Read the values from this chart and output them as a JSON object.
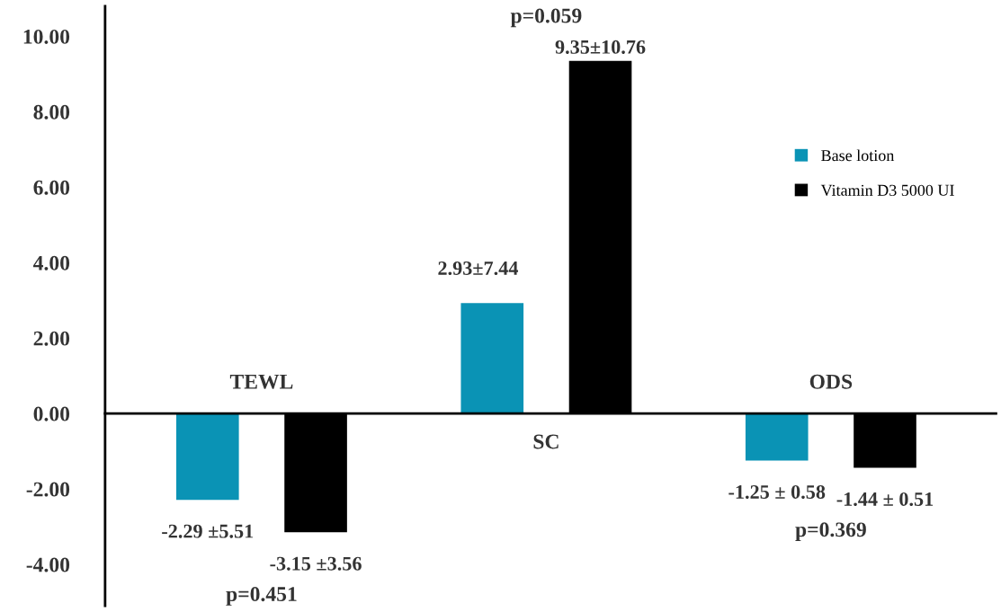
{
  "chart_data": {
    "type": "bar",
    "categories": [
      "TEWL",
      "SC",
      "ODS"
    ],
    "series": [
      {
        "name": "Base lotion",
        "color": "#0a93b5",
        "values": [
          -2.29,
          2.93,
          -1.25
        ],
        "value_labels": [
          "-2.29 ±5.51",
          "2.93±7.44",
          "-1.25 ± 0.58"
        ]
      },
      {
        "name": "Vitamin D3 5000 UI",
        "color": "#000000",
        "values": [
          -3.15,
          9.35,
          -1.44
        ],
        "value_labels": [
          "-3.15 ±3.56",
          "9.35±10.76",
          "-1.44 ± 0.51"
        ]
      }
    ],
    "annotations": [
      "p=0.451",
      "p=0.059",
      "p=0.369"
    ],
    "ylim": [
      -5.1,
      10.8
    ],
    "yticks": [
      {
        "value": -4,
        "label": "-4.00"
      },
      {
        "value": -2,
        "label": "-2.00"
      },
      {
        "value": 0,
        "label": "0.00"
      },
      {
        "value": 2,
        "label": "2.00"
      },
      {
        "value": 4,
        "label": "4.00"
      },
      {
        "value": 6,
        "label": "6.00"
      },
      {
        "value": 8,
        "label": "8.00"
      },
      {
        "value": 10,
        "label": "10.00"
      }
    ],
    "grid": false,
    "legend": "right"
  }
}
